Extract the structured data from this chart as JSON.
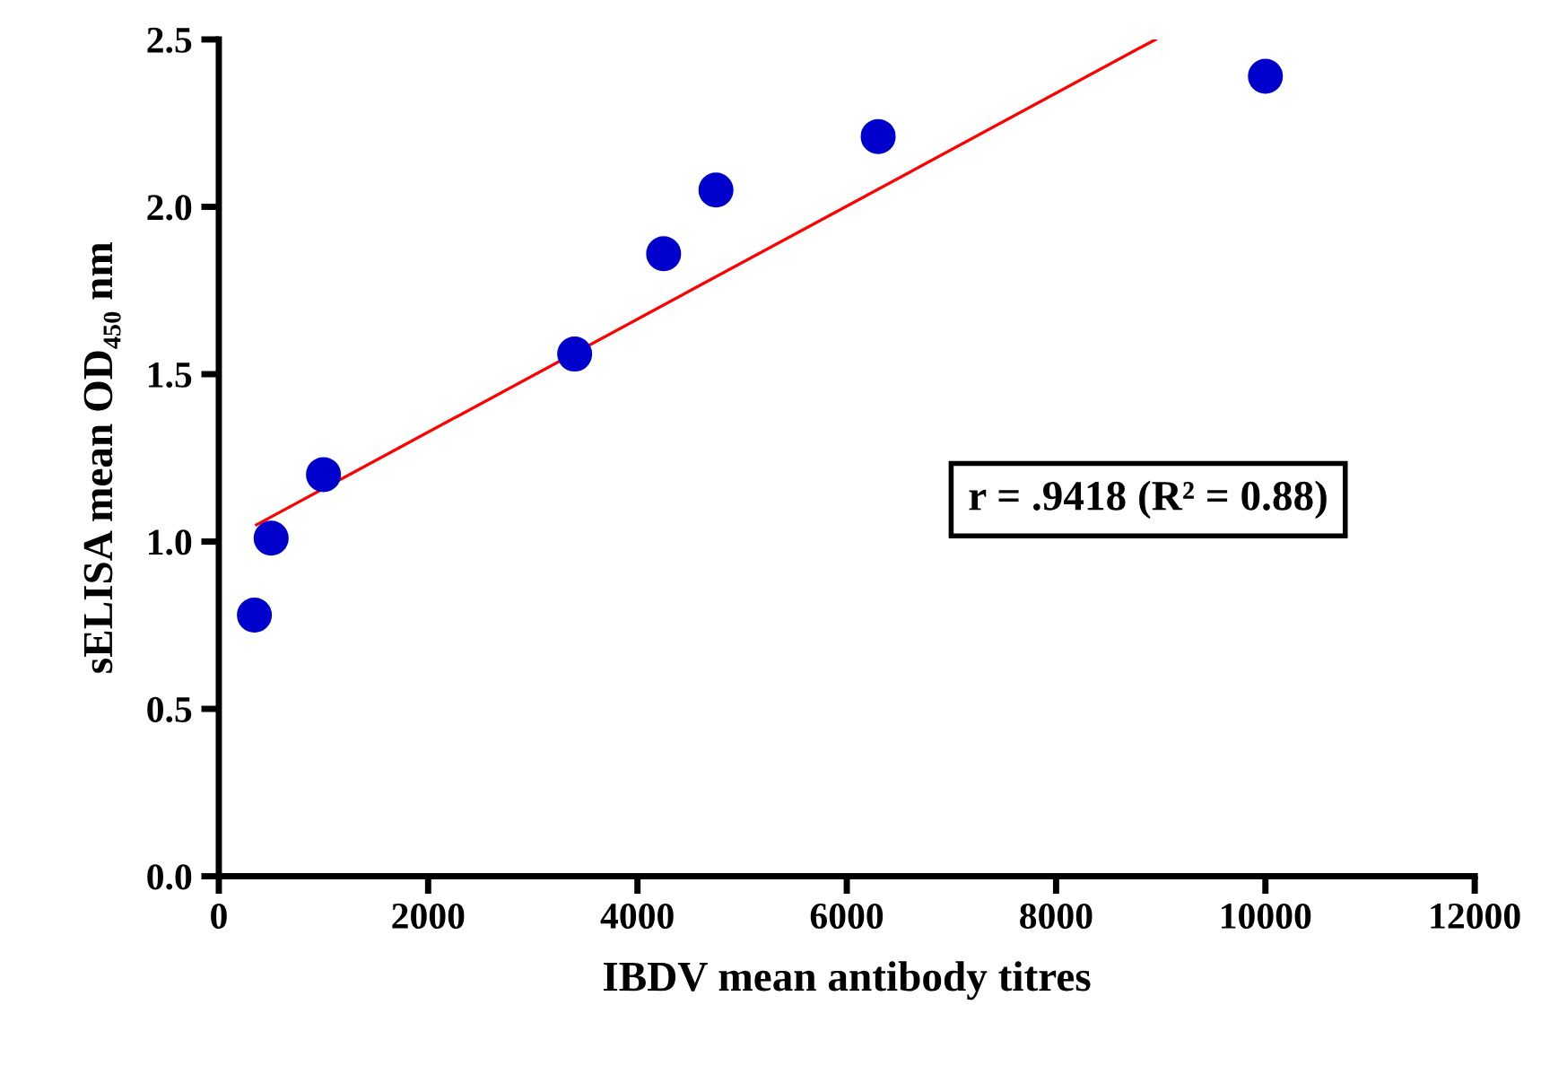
{
  "chart_data": {
    "type": "scatter",
    "xlabel": "IBDV mean antibody titres",
    "ylabel": "sELISA mean OD₄₅₀ nm",
    "annotations": [
      "r = .9418 (R² = 0.88)"
    ],
    "series": [
      {
        "color": "#0000cc",
        "marker": "circle",
        "x": [
          340,
          500,
          1000,
          3400,
          4250,
          4750,
          6300,
          10000
        ],
        "values": [
          0.78,
          1.01,
          1.2,
          1.56,
          1.86,
          2.05,
          2.21,
          2.39
        ]
      },
      {
        "type": "line",
        "color": "#ff0000",
        "x": [
          360,
          8950
        ],
        "values": [
          1.05,
          2.5
        ]
      }
    ],
    "xlim": [
      0,
      12000
    ],
    "xticks": [
      0,
      2000,
      4000,
      6000,
      8000,
      10000,
      12000
    ],
    "ylim": [
      0,
      2.5
    ],
    "yticks": [
      {
        "value": 0,
        "label": "0.0"
      },
      0.5,
      {
        "value": 1,
        "label": "1.0"
      },
      1.5,
      {
        "value": 2,
        "label": "2.0"
      },
      2.5
    ],
    "grid": false,
    "legend": false
  }
}
